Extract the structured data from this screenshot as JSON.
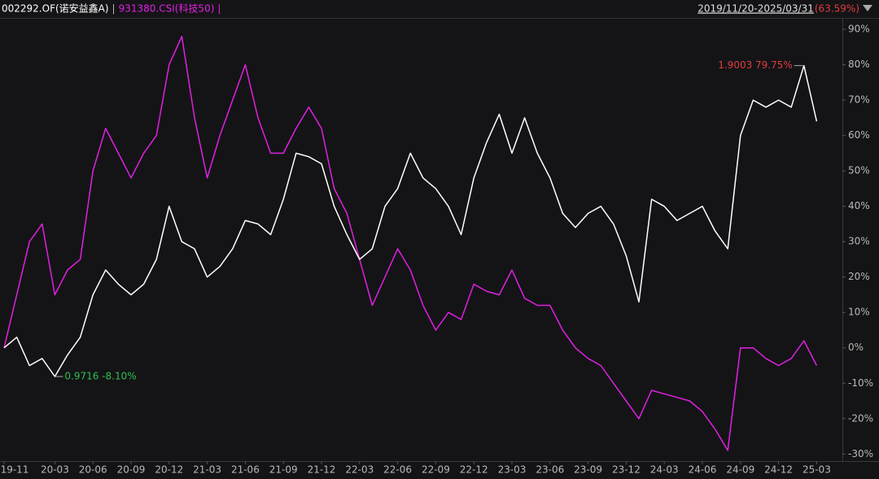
{
  "chart_data": {
    "type": "line",
    "date_range": "2019/11/20-2025/03/31",
    "period_return": "(63.59%)",
    "categories": [
      "19-11",
      null,
      null,
      null,
      "20-03",
      null,
      null,
      "20-06",
      null,
      null,
      "20-09",
      null,
      null,
      "20-12",
      null,
      null,
      "21-03",
      null,
      null,
      "21-06",
      null,
      null,
      "21-09",
      null,
      null,
      "21-12",
      null,
      null,
      "22-03",
      null,
      null,
      "22-06",
      null,
      null,
      "22-09",
      null,
      null,
      "22-12",
      null,
      null,
      "23-03",
      null,
      null,
      "23-06",
      null,
      null,
      "23-09",
      null,
      null,
      "23-12",
      null,
      null,
      "24-03",
      null,
      null,
      "24-06",
      null,
      null,
      "24-09",
      null,
      null,
      "24-12",
      null,
      null,
      "25-03"
    ],
    "series": [
      {
        "name": "002292.OF(诺安益鑫A)",
        "color": "#ffffff",
        "values": [
          0,
          3,
          -5,
          -3,
          -8.1,
          -2,
          3,
          15,
          22,
          18,
          15,
          18,
          25,
          40,
          30,
          28,
          20,
          23,
          28,
          36,
          35,
          32,
          42,
          55,
          54,
          52,
          40,
          32,
          25,
          28,
          40,
          45,
          55,
          48,
          45,
          40,
          32,
          48,
          58,
          66,
          55,
          65,
          55,
          48,
          38,
          34,
          38,
          40,
          35,
          26,
          13,
          42,
          40,
          36,
          38,
          40,
          33,
          28,
          60,
          70,
          68,
          70,
          68,
          79.75,
          64
        ]
      },
      {
        "name": "931380.CSI(科技50)",
        "color": "#e020e0",
        "values": [
          0,
          15,
          30,
          35,
          15,
          22,
          25,
          50,
          62,
          55,
          48,
          55,
          60,
          80,
          88,
          65,
          48,
          60,
          70,
          80,
          65,
          55,
          55,
          62,
          68,
          62,
          45,
          38,
          25,
          12,
          20,
          28,
          22,
          12,
          5,
          10,
          8,
          18,
          16,
          15,
          22,
          14,
          12,
          12,
          5,
          0,
          -3,
          -5,
          -10,
          -15,
          -20,
          -12,
          -13,
          -14,
          -15,
          -18,
          -23,
          -29,
          0,
          0,
          -3,
          -5,
          -3,
          2,
          -5
        ]
      }
    ],
    "annotations": [
      {
        "text": "1.9003 79.75%",
        "color": "#e03c3c"
      },
      {
        "text": "0.9716 -8.10%",
        "color": "#2fbf4f"
      }
    ],
    "ylim": [
      -32,
      93
    ],
    "yticks": [
      {
        "value": -30,
        "label": "-30%"
      },
      {
        "value": -20,
        "label": "-20%"
      },
      {
        "value": -10,
        "label": "-10%"
      },
      {
        "value": 0,
        "label": "0%"
      },
      {
        "value": 10,
        "label": "10%"
      },
      {
        "value": 20,
        "label": "20%"
      },
      {
        "value": 30,
        "label": "30%"
      },
      {
        "value": 40,
        "label": "40%"
      },
      {
        "value": 50,
        "label": "50%"
      },
      {
        "value": 60,
        "label": "60%"
      },
      {
        "value": 70,
        "label": "70%"
      },
      {
        "value": 80,
        "label": "80%"
      },
      {
        "value": 90,
        "label": "90%"
      }
    ],
    "grid": false
  }
}
